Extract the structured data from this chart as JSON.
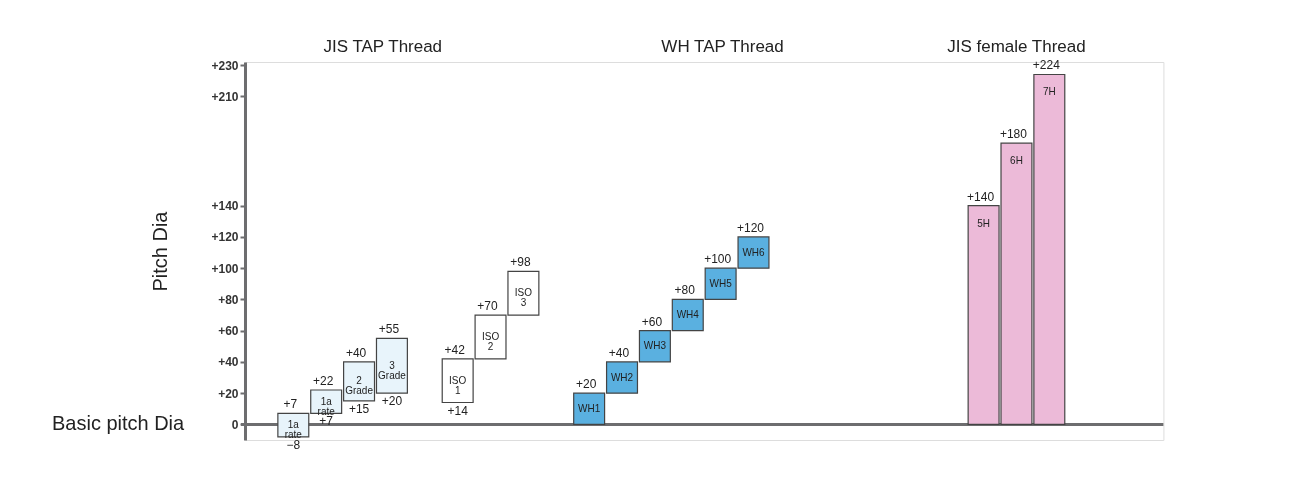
{
  "chart_data": {
    "type": "bar",
    "ylabel": "Pitch Dia",
    "categories": [
      null,
      "1a rate",
      "1a rate",
      "2 Grade",
      "3 Grade",
      null,
      "ISO 1",
      "ISO 2",
      "ISO 3",
      null,
      "WH1",
      "WH2",
      "WH3",
      "WH4",
      "WH5",
      "WH6",
      null,
      null,
      null,
      null,
      null,
      null,
      "5H",
      "6H",
      "7H",
      null,
      null,
      null
    ],
    "values": [
      null,
      15,
      15,
      25,
      35,
      null,
      28,
      28,
      28,
      null,
      20,
      20,
      20,
      20,
      20,
      20,
      null,
      null,
      null,
      null,
      null,
      null,
      140,
      180,
      224,
      null,
      null,
      null
    ],
    "base": [
      null,
      -8,
      7,
      15,
      20,
      null,
      14,
      42,
      70,
      null,
      0,
      20,
      40,
      60,
      80,
      100,
      null,
      null,
      null,
      null,
      null,
      null,
      0,
      0,
      0,
      null,
      null,
      null
    ],
    "colors": [
      null,
      "#e8f4fb",
      "#e8f4fb",
      "#e8f4fb",
      "#e8f4fb",
      null,
      "#ffffff",
      "#ffffff",
      "#ffffff",
      null,
      "#5ab0e0",
      "#5ab0e0",
      "#5ab0e0",
      "#5ab0e0",
      "#5ab0e0",
      "#5ab0e0",
      null,
      null,
      null,
      null,
      null,
      null,
      "#ecbad8",
      "#ecbad8",
      "#ecbad8",
      null,
      null,
      null
    ],
    "ylim": [
      -10,
      232
    ],
    "yticks": [
      0,
      {
        "value": 20,
        "label": "+20"
      },
      {
        "value": 40,
        "label": "+40"
      },
      {
        "value": 60,
        "label": "+60"
      },
      {
        "value": 80,
        "label": "+80"
      },
      {
        "value": 100,
        "label": "+100"
      },
      {
        "value": 120,
        "label": "+120"
      },
      {
        "value": 140,
        "label": "+140"
      },
      {
        "value": 210,
        "label": "+210"
      },
      {
        "value": 230,
        "label": "+230"
      }
    ],
    "tick_labels": "y",
    "ref_lines": [
      {
        "axis": "y",
        "value": 0,
        "label": "Basic pitch Dia",
        "color": "#6d6d6f"
      }
    ],
    "annotations": [
      "JIS TAP Thread",
      "WH TAP Thread",
      "JIS female Thread",
      {
        "text": "+7",
        "x": "1a rate",
        "y": 7
      },
      {
        "text": "−8",
        "x": "1a rate",
        "y": -8
      },
      {
        "text": "+22",
        "y": 22
      },
      {
        "text": "+7",
        "y": 7
      },
      {
        "text": "+40",
        "x": "2 Grade",
        "y": 40
      },
      {
        "text": "+15",
        "x": "2 Grade",
        "y": 15
      },
      {
        "text": "+55",
        "x": "3 Grade",
        "y": 55
      },
      {
        "text": "+20",
        "x": "3 Grade",
        "y": 20
      },
      {
        "text": "+42",
        "x": "ISO 1",
        "y": 42
      },
      {
        "text": "+14",
        "x": "ISO 1",
        "y": 14
      },
      {
        "text": "+70",
        "x": "ISO 2",
        "y": 70
      },
      {
        "text": "+98",
        "x": "ISO 3",
        "y": 98
      },
      {
        "text": "+20",
        "x": "WH1",
        "y": 20
      },
      {
        "text": "+40",
        "x": "WH2",
        "y": 40
      },
      {
        "text": "+60",
        "x": "WH3",
        "y": 60
      },
      {
        "text": "+80",
        "x": "WH4",
        "y": 80
      },
      {
        "text": "+100",
        "x": "WH5",
        "y": 100
      },
      {
        "text": "+120",
        "x": "WH6",
        "y": 120
      },
      {
        "text": "+140",
        "x": "5H",
        "y": 140
      },
      {
        "text": "+180",
        "x": "6H",
        "y": 180
      },
      {
        "text": "+224",
        "x": "7H",
        "y": 224
      }
    ],
    "grid": false
  }
}
